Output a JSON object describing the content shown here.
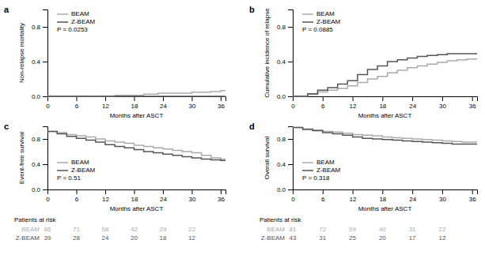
{
  "chart_data": [
    {
      "type": "step",
      "title": "a",
      "ylabel": "Non-relapse mortality",
      "xlabel": "Months after ASCT",
      "xlim": [
        0,
        37
      ],
      "ylim": [
        0,
        1.0
      ],
      "xticks": [
        0,
        6,
        12,
        18,
        24,
        30,
        36
      ],
      "yticks": [
        {
          "value": 0.0,
          "label": "0.0"
        },
        0.4,
        0.8
      ],
      "legend": "upper left",
      "annotations": [
        "P = 0.0253"
      ],
      "series": [
        {
          "name": "BEAM",
          "color": "#aaaaaa",
          "x": [
            0,
            13,
            14,
            19,
            20,
            22,
            23,
            25,
            30,
            31,
            34,
            35,
            36,
            37
          ],
          "values": [
            0,
            0,
            0.012,
            0.012,
            0.024,
            0.024,
            0.036,
            0.036,
            0.048,
            0.048,
            0.055,
            0.055,
            0.065,
            0.065
          ]
        },
        {
          "name": "Z-BEAM",
          "color": "#555555",
          "x": [
            0,
            37
          ],
          "values": [
            0,
            0
          ]
        }
      ]
    },
    {
      "type": "step",
      "title": "b",
      "ylabel": "Cumulative incidence of relapse",
      "xlabel": "Months after ASCT",
      "xlim": [
        0,
        37
      ],
      "ylim": [
        0,
        1.0
      ],
      "xticks": [
        0,
        6,
        12,
        18,
        24,
        30,
        36
      ],
      "yticks": [
        {
          "value": 0.0,
          "label": "0.0"
        },
        0.4,
        0.8
      ],
      "legend": "upper left",
      "annotations": [
        "P = 0.0885"
      ],
      "series": [
        {
          "name": "BEAM",
          "color": "#aaaaaa",
          "x": [
            0,
            2,
            3,
            4,
            5,
            6,
            7,
            8,
            9,
            10,
            11,
            12,
            13,
            14,
            15,
            16,
            17,
            18,
            19,
            20,
            21,
            22,
            23,
            24,
            25,
            26,
            27,
            28,
            29,
            30,
            31,
            32,
            33,
            34,
            35,
            36,
            37
          ],
          "values": [
            0,
            0,
            0.02,
            0.02,
            0.05,
            0.05,
            0.07,
            0.07,
            0.09,
            0.09,
            0.12,
            0.12,
            0.16,
            0.16,
            0.2,
            0.2,
            0.23,
            0.23,
            0.27,
            0.27,
            0.3,
            0.3,
            0.33,
            0.33,
            0.35,
            0.35,
            0.37,
            0.37,
            0.39,
            0.39,
            0.41,
            0.41,
            0.42,
            0.42,
            0.43,
            0.43,
            0.43
          ]
        },
        {
          "name": "Z-BEAM",
          "color": "#555555",
          "x": [
            0,
            2,
            3,
            4,
            5,
            6,
            7,
            8,
            9,
            10,
            11,
            12,
            13,
            14,
            15,
            16,
            17,
            18,
            19,
            20,
            21,
            22,
            23,
            24,
            25,
            26,
            27,
            28,
            29,
            30,
            31,
            32,
            33,
            34,
            35,
            36,
            37
          ],
          "values": [
            0,
            0,
            0.03,
            0.03,
            0.07,
            0.07,
            0.1,
            0.1,
            0.14,
            0.14,
            0.18,
            0.18,
            0.25,
            0.25,
            0.31,
            0.31,
            0.35,
            0.35,
            0.4,
            0.4,
            0.42,
            0.42,
            0.44,
            0.44,
            0.46,
            0.46,
            0.47,
            0.47,
            0.48,
            0.48,
            0.49,
            0.49,
            0.49,
            0.49,
            0.49,
            0.49,
            0.49
          ]
        }
      ]
    },
    {
      "type": "step",
      "title": "c",
      "ylabel": "Event-free survival",
      "xlabel": "Months after ASCT",
      "xlim": [
        0,
        37
      ],
      "ylim": [
        0,
        1.0
      ],
      "xticks": [
        0,
        6,
        12,
        18,
        24,
        30,
        36
      ],
      "yticks": [
        {
          "value": 0.0,
          "label": "0.0"
        },
        0.4,
        0.8
      ],
      "legend": "lower left",
      "annotations": [
        "P = 0.51"
      ],
      "series": [
        {
          "name": "BEAM",
          "color": "#aaaaaa",
          "x": [
            0,
            1,
            2,
            3,
            4,
            5,
            6,
            7,
            8,
            9,
            10,
            11,
            12,
            13,
            14,
            15,
            16,
            17,
            18,
            19,
            20,
            21,
            22,
            23,
            24,
            25,
            26,
            27,
            28,
            29,
            30,
            31,
            32,
            33,
            34,
            35,
            36,
            37
          ],
          "values": [
            0.92,
            0.92,
            0.9,
            0.9,
            0.87,
            0.87,
            0.85,
            0.85,
            0.83,
            0.83,
            0.8,
            0.8,
            0.77,
            0.77,
            0.75,
            0.75,
            0.73,
            0.73,
            0.7,
            0.7,
            0.68,
            0.68,
            0.66,
            0.66,
            0.64,
            0.64,
            0.62,
            0.62,
            0.6,
            0.6,
            0.58,
            0.58,
            0.54,
            0.54,
            0.5,
            0.5,
            0.48,
            0.48
          ]
        },
        {
          "name": "Z-BEAM",
          "color": "#555555",
          "x": [
            0,
            1,
            2,
            3,
            4,
            5,
            6,
            7,
            8,
            9,
            10,
            11,
            12,
            13,
            14,
            15,
            16,
            17,
            18,
            19,
            20,
            21,
            22,
            23,
            24,
            25,
            26,
            27,
            28,
            29,
            30,
            31,
            32,
            33,
            34,
            35,
            36,
            37
          ],
          "values": [
            0.92,
            0.92,
            0.88,
            0.88,
            0.84,
            0.84,
            0.81,
            0.81,
            0.78,
            0.78,
            0.75,
            0.75,
            0.71,
            0.71,
            0.68,
            0.68,
            0.66,
            0.66,
            0.63,
            0.63,
            0.6,
            0.6,
            0.58,
            0.58,
            0.56,
            0.56,
            0.54,
            0.54,
            0.52,
            0.52,
            0.5,
            0.5,
            0.48,
            0.48,
            0.47,
            0.47,
            0.46,
            0.46
          ]
        }
      ],
      "risk_table": {
        "title": "Patients at risk",
        "rows": [
          {
            "name": "BEAM",
            "color": "#aaaaaa",
            "values": [
              86,
              71,
              58,
              42,
              29,
              22
            ]
          },
          {
            "name": "Z-BEAM",
            "color": "#555555",
            "values": [
              39,
              28,
              24,
              20,
              18,
              12
            ]
          }
        ]
      }
    },
    {
      "type": "step",
      "title": "d",
      "ylabel": "Overall survival",
      "xlabel": "Months after ASCT",
      "xlim": [
        0,
        37
      ],
      "ylim": [
        0,
        1.0
      ],
      "xticks": [
        0,
        6,
        12,
        18,
        24,
        30,
        36
      ],
      "yticks": [
        {
          "value": 0.0,
          "label": "0.0"
        },
        0.4,
        0.8
      ],
      "legend": "lower left",
      "annotations": [
        "P = 0.318"
      ],
      "series": [
        {
          "name": "BEAM",
          "color": "#aaaaaa",
          "x": [
            0,
            1,
            2,
            3,
            4,
            5,
            6,
            7,
            8,
            9,
            10,
            11,
            12,
            13,
            14,
            15,
            16,
            17,
            18,
            19,
            20,
            21,
            22,
            23,
            24,
            25,
            26,
            27,
            28,
            29,
            30,
            31,
            32,
            33,
            34,
            35,
            36,
            37
          ],
          "values": [
            0.98,
            0.98,
            0.96,
            0.96,
            0.94,
            0.94,
            0.92,
            0.92,
            0.91,
            0.91,
            0.89,
            0.89,
            0.87,
            0.87,
            0.86,
            0.86,
            0.85,
            0.85,
            0.83,
            0.83,
            0.82,
            0.82,
            0.81,
            0.81,
            0.8,
            0.8,
            0.79,
            0.79,
            0.78,
            0.78,
            0.77,
            0.77,
            0.76,
            0.76,
            0.75,
            0.75,
            0.75,
            0.75
          ]
        },
        {
          "name": "Z-BEAM",
          "color": "#555555",
          "x": [
            0,
            1,
            2,
            3,
            4,
            5,
            6,
            7,
            8,
            9,
            10,
            11,
            12,
            13,
            14,
            15,
            16,
            17,
            18,
            19,
            20,
            21,
            22,
            23,
            24,
            25,
            26,
            27,
            28,
            29,
            30,
            31,
            32,
            33,
            34,
            35,
            36,
            37
          ],
          "values": [
            0.98,
            0.98,
            0.95,
            0.95,
            0.93,
            0.93,
            0.9,
            0.9,
            0.88,
            0.88,
            0.86,
            0.86,
            0.83,
            0.83,
            0.81,
            0.81,
            0.8,
            0.8,
            0.79,
            0.79,
            0.78,
            0.78,
            0.77,
            0.77,
            0.76,
            0.76,
            0.75,
            0.75,
            0.74,
            0.74,
            0.73,
            0.73,
            0.72,
            0.72,
            0.72,
            0.72,
            0.72,
            0.72
          ]
        }
      ],
      "risk_table": {
        "title": "Patients at risk",
        "rows": [
          {
            "name": "BEAM",
            "color": "#aaaaaa",
            "values": [
              81,
              72,
              59,
              40,
              31,
              22
            ]
          },
          {
            "name": "Z-BEAM",
            "color": "#555555",
            "values": [
              43,
              31,
              25,
              20,
              17,
              12
            ]
          }
        ]
      }
    }
  ]
}
